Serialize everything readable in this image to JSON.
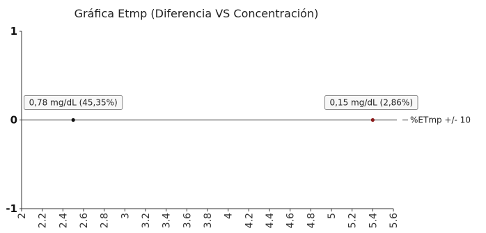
{
  "chart_data": {
    "type": "scatter",
    "title": "Gráfica Etmp (Diferencia VS Concentración)",
    "xlabel": "",
    "ylabel": "",
    "xlim": [
      2,
      5.6
    ],
    "ylim": [
      -1,
      1
    ],
    "x_ticks": [
      "2",
      "2.2",
      "2.4",
      "2.6",
      "2.8",
      "3",
      "3.2",
      "3.4",
      "3.6",
      "3.8",
      "4",
      "4.2",
      "4.4",
      "4.6",
      "4.8",
      "5",
      "5.2",
      "5.4",
      "5.6"
    ],
    "y_ticks": [
      "1",
      "0",
      "-1"
    ],
    "series": [
      {
        "name": "%ETmp +/- 10",
        "points": [
          {
            "x": 2.5,
            "y": 0,
            "label": "0,78 mg/dL (45,35%)",
            "color": "#111111"
          },
          {
            "x": 5.4,
            "y": 0,
            "label": "0,15 mg/dL (2,86%)",
            "color": "#8b1a1a"
          }
        ]
      }
    ],
    "reference_line": {
      "y": 0,
      "color": "#222222"
    },
    "legend_position": "right",
    "grid": false
  }
}
